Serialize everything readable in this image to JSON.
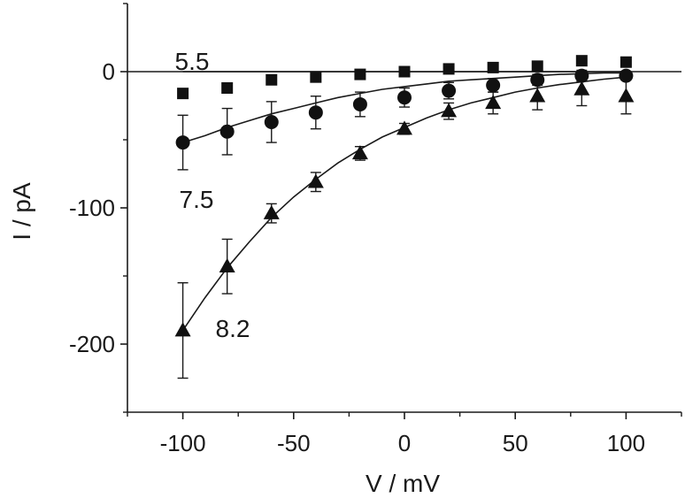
{
  "chart_data": {
    "type": "scatter",
    "xlabel": "V / mV",
    "ylabel": "I / pA",
    "xlim": [
      -125,
      125
    ],
    "ylim": [
      -250,
      50
    ],
    "xticks": [
      -100,
      -50,
      0,
      50,
      100
    ],
    "yticks": [
      0,
      -100,
      -200
    ],
    "xtick_labels": [
      "-100",
      "-50",
      "0",
      "50",
      "100"
    ],
    "ytick_labels": [
      "0",
      "-100",
      "-200"
    ],
    "zero_line": true,
    "grid": false,
    "series": [
      {
        "name": "5.5",
        "marker": "square",
        "color": "#111111",
        "x": [
          -100,
          -80,
          -60,
          -40,
          -20,
          0,
          20,
          40,
          60,
          80,
          100
        ],
        "y": [
          -16,
          -12,
          -6,
          -4,
          -2,
          0,
          2,
          3,
          4,
          8,
          7
        ],
        "err": [
          0,
          0,
          0,
          0,
          0,
          0,
          0,
          0,
          0,
          0,
          0
        ],
        "fit": [
          [
            -100,
            0
          ],
          [
            100,
            0
          ]
        ]
      },
      {
        "name": "7.5",
        "marker": "circle",
        "color": "#111111",
        "x": [
          -100,
          -80,
          -60,
          -40,
          -20,
          0,
          20,
          40,
          60,
          80,
          100
        ],
        "y": [
          -52,
          -44,
          -37,
          -30,
          -24,
          -19,
          -14,
          -10,
          -6,
          -3,
          -3
        ],
        "err": [
          20,
          17,
          15,
          12,
          9,
          7,
          6,
          5,
          4,
          4,
          3
        ],
        "fit": [
          [
            -100,
            -52
          ],
          [
            -90,
            -47
          ],
          [
            -80,
            -41
          ],
          [
            -70,
            -36
          ],
          [
            -60,
            -31
          ],
          [
            -50,
            -27
          ],
          [
            -40,
            -23
          ],
          [
            -30,
            -19
          ],
          [
            -20,
            -16
          ],
          [
            -10,
            -13
          ],
          [
            0,
            -11
          ],
          [
            10,
            -9
          ],
          [
            20,
            -7
          ],
          [
            30,
            -6
          ],
          [
            40,
            -5
          ],
          [
            50,
            -4
          ],
          [
            60,
            -3
          ],
          [
            70,
            -2
          ],
          [
            80,
            -1.5
          ],
          [
            90,
            -1
          ],
          [
            100,
            -1
          ]
        ]
      },
      {
        "name": "8.2",
        "marker": "triangle",
        "color": "#111111",
        "x": [
          -100,
          -80,
          -60,
          -40,
          -20,
          0,
          20,
          40,
          60,
          80,
          100
        ],
        "y": [
          -190,
          -143,
          -104,
          -81,
          -60,
          -42,
          -29,
          -23,
          -18,
          -13,
          -18
        ],
        "err": [
          35,
          20,
          7,
          7,
          5,
          4,
          6,
          8,
          10,
          12,
          13
        ],
        "fit": [
          [
            -100,
            -190
          ],
          [
            -90,
            -166
          ],
          [
            -80,
            -144
          ],
          [
            -70,
            -125
          ],
          [
            -60,
            -107
          ],
          [
            -50,
            -92
          ],
          [
            -40,
            -79
          ],
          [
            -30,
            -67
          ],
          [
            -20,
            -57
          ],
          [
            -10,
            -48
          ],
          [
            0,
            -41
          ],
          [
            10,
            -34
          ],
          [
            20,
            -28
          ],
          [
            30,
            -23
          ],
          [
            40,
            -19
          ],
          [
            50,
            -15
          ],
          [
            60,
            -12
          ],
          [
            70,
            -9.5
          ],
          [
            80,
            -7.5
          ],
          [
            90,
            -5.5
          ],
          [
            100,
            -4
          ]
        ]
      }
    ]
  }
}
